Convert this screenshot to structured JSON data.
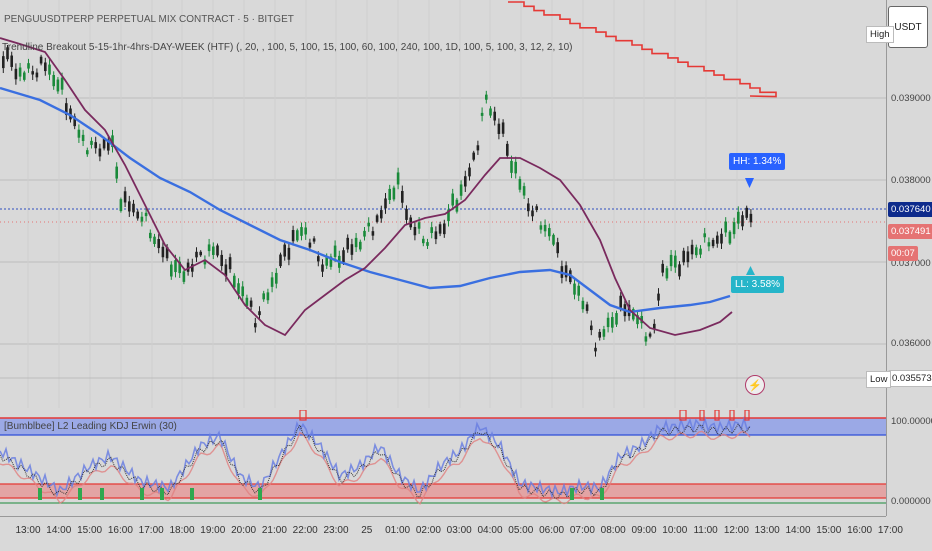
{
  "header": {
    "symbol_line": "PENGUUSDTPERP PERPETUAL MIX CONTRACT · 5 · BITGET",
    "indicator_line": "Trendline Breakout 5-15-1hr-4hrs-DAY-WEEK (HTF) (, 20, , 100, 5, 100, 15, 100, 60, 100, 240, 100, 1D, 100, 5, 100, 3, 12, 2, 10)"
  },
  "sub_indicator": {
    "title": "[Bumblbee] L2 Leading KDJ Erwin (30)"
  },
  "price_axis": {
    "currency_button": "USDT",
    "high_label": "High",
    "low_label": "Low",
    "low_value": "0.035573",
    "ticks": [
      "0.039000",
      "0.038000",
      "0.036000"
    ],
    "partial_tick": "0.037000",
    "current_price": "0.037640",
    "bid_price": "0.037491",
    "countdown": "00:07",
    "ind_ticks": [
      "100.000000",
      "0.000000"
    ]
  },
  "time_axis": {
    "labels": [
      "13:00",
      "14:00",
      "15:00",
      "16:00",
      "17:00",
      "18:00",
      "19:00",
      "20:00",
      "21:00",
      "22:00",
      "23:00",
      "25",
      "01:00",
      "02:00",
      "03:00",
      "04:00",
      "05:00",
      "06:00",
      "07:00",
      "08:00",
      "09:00",
      "10:00",
      "11:00",
      "12:00",
      "13:00",
      "14:00",
      "15:00",
      "16:00",
      "17:00"
    ]
  },
  "annotations": {
    "hh_badge": "HH: 1.34%",
    "ll_badge": "LL: 3.58%"
  },
  "colors": {
    "candle_up": "#1a8a3a",
    "candle_down": "#222222",
    "ma_blue": "#3a6fe0",
    "ma_purple": "#7a2a5e",
    "trend_red": "#e53935",
    "hh_badge": "#2962ff",
    "ll_badge": "#26b5c9",
    "current_price_bg": "#0d2b8c",
    "bid_price_bg": "#e57373"
  },
  "icons": {
    "alert": "lightning-icon"
  }
}
